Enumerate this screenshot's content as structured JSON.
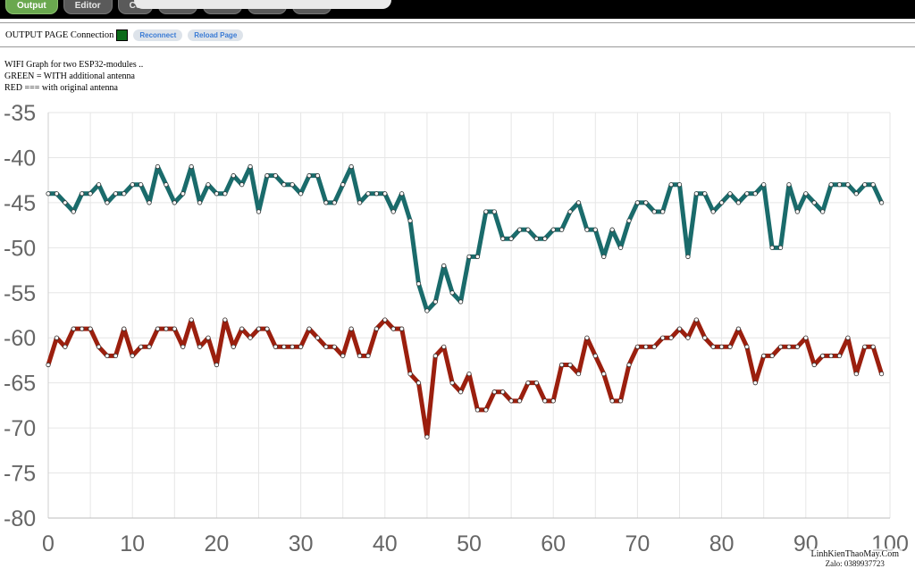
{
  "tabs": [
    {
      "label": "Output",
      "active": true
    },
    {
      "label": "Editor",
      "active": false
    },
    {
      "label": "Co",
      "active": false
    }
  ],
  "connection": {
    "label": "OUTPUT PAGE Connection",
    "status_color": "#0b6b1a",
    "reconnect_label": "Reconnect",
    "reload_label": "Reload Page"
  },
  "info": {
    "line1": "WIFI Graph for two ESP32-modules ..",
    "line2": "GREEN = WITH additional antenna",
    "line3": "RED === with original antenna"
  },
  "watermark": {
    "line1": "LinhKienThaoMay.Com",
    "line2": "Zalo: 0389937723"
  },
  "chart_data": {
    "type": "line",
    "xlim": [
      0,
      100
    ],
    "ylim": [
      -80,
      -35
    ],
    "xticks": [
      0,
      10,
      20,
      30,
      40,
      50,
      60,
      70,
      80,
      90,
      100
    ],
    "yticks": [
      -35,
      -40,
      -45,
      -50,
      -55,
      -60,
      -65,
      -70,
      -75,
      -80
    ],
    "grid": true,
    "series": [
      {
        "color": "#1a6b6b",
        "values": [
          -44,
          -44,
          -45,
          -46,
          -44,
          -44,
          -43,
          -45,
          -44,
          -44,
          -43,
          -43,
          -45,
          -41,
          -43,
          -45,
          -44,
          -41,
          -45,
          -43,
          -44,
          -44,
          -42,
          -43,
          -41,
          -46,
          -42,
          -42,
          -43,
          -43,
          -44,
          -42,
          -42,
          -45,
          -45,
          -43,
          -41,
          -45,
          -44,
          -44,
          -44,
          -46,
          -44,
          -47,
          -54,
          -57,
          -56,
          -52,
          -55,
          -56,
          -51,
          -51,
          -46,
          -46,
          -49,
          -49,
          -48,
          -48,
          -49,
          -49,
          -48,
          -48,
          -46,
          -45,
          -48,
          -48,
          -51,
          -48,
          -50,
          -47,
          -45,
          -45,
          -46,
          -46,
          -43,
          -43,
          -51,
          -44,
          -44,
          -46,
          -45,
          -44,
          -45,
          -44,
          -44,
          -43,
          -50,
          -50,
          -43,
          -46,
          -44,
          -45,
          -46,
          -43,
          -43,
          -43,
          -44,
          -43,
          -43,
          -45
        ]
      },
      {
        "color": "#9b1f0e",
        "values": [
          -63,
          -60,
          -61,
          -59,
          -59,
          -59,
          -61,
          -62,
          -62,
          -59,
          -62,
          -61,
          -61,
          -59,
          -59,
          -59,
          -61,
          -58,
          -61,
          -60,
          -63,
          -58,
          -61,
          -59,
          -60,
          -59,
          -59,
          -61,
          -61,
          -61,
          -61,
          -59,
          -60,
          -61,
          -61,
          -62,
          -59,
          -62,
          -62,
          -59,
          -58,
          -59,
          -59,
          -64,
          -65,
          -71,
          -62,
          -61,
          -65,
          -66,
          -64,
          -68,
          -68,
          -66,
          -66,
          -67,
          -67,
          -65,
          -65,
          -67,
          -67,
          -63,
          -63,
          -64,
          -60,
          -62,
          -64,
          -67,
          -67,
          -63,
          -61,
          -61,
          -61,
          -60,
          -60,
          -59,
          -60,
          -58,
          -60,
          -61,
          -61,
          -61,
          -59,
          -61,
          -65,
          -62,
          -62,
          -61,
          -61,
          -61,
          -60,
          -63,
          -62,
          -62,
          -62,
          -60,
          -64,
          -61,
          -61,
          -64
        ]
      }
    ]
  }
}
